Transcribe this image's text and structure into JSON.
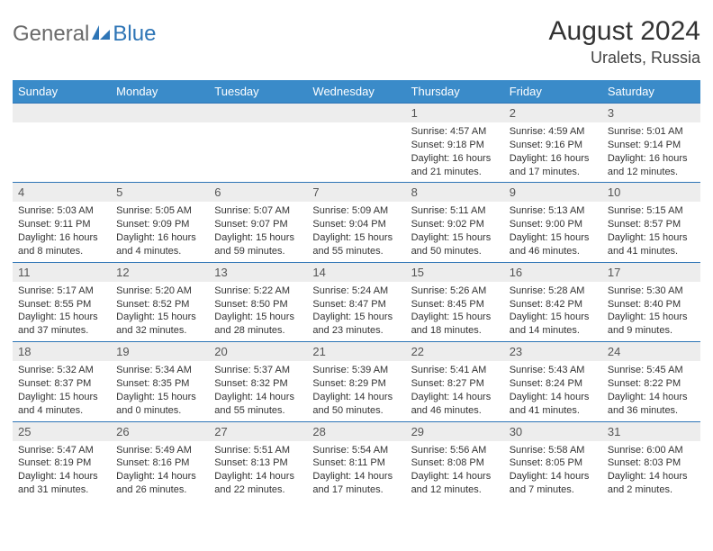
{
  "brand": {
    "name_a": "General",
    "name_b": "Blue"
  },
  "title": "August 2024",
  "location": "Uralets, Russia",
  "colors": {
    "header_bg": "#3a8bc9",
    "border": "#2e75b6",
    "daynum_bg": "#ededed",
    "text": "#333333"
  },
  "day_names": [
    "Sunday",
    "Monday",
    "Tuesday",
    "Wednesday",
    "Thursday",
    "Friday",
    "Saturday"
  ],
  "weeks": [
    [
      {
        "n": "",
        "sr": "",
        "ss": "",
        "dl": ""
      },
      {
        "n": "",
        "sr": "",
        "ss": "",
        "dl": ""
      },
      {
        "n": "",
        "sr": "",
        "ss": "",
        "dl": ""
      },
      {
        "n": "",
        "sr": "",
        "ss": "",
        "dl": ""
      },
      {
        "n": "1",
        "sr": "Sunrise: 4:57 AM",
        "ss": "Sunset: 9:18 PM",
        "dl": "Daylight: 16 hours and 21 minutes."
      },
      {
        "n": "2",
        "sr": "Sunrise: 4:59 AM",
        "ss": "Sunset: 9:16 PM",
        "dl": "Daylight: 16 hours and 17 minutes."
      },
      {
        "n": "3",
        "sr": "Sunrise: 5:01 AM",
        "ss": "Sunset: 9:14 PM",
        "dl": "Daylight: 16 hours and 12 minutes."
      }
    ],
    [
      {
        "n": "4",
        "sr": "Sunrise: 5:03 AM",
        "ss": "Sunset: 9:11 PM",
        "dl": "Daylight: 16 hours and 8 minutes."
      },
      {
        "n": "5",
        "sr": "Sunrise: 5:05 AM",
        "ss": "Sunset: 9:09 PM",
        "dl": "Daylight: 16 hours and 4 minutes."
      },
      {
        "n": "6",
        "sr": "Sunrise: 5:07 AM",
        "ss": "Sunset: 9:07 PM",
        "dl": "Daylight: 15 hours and 59 minutes."
      },
      {
        "n": "7",
        "sr": "Sunrise: 5:09 AM",
        "ss": "Sunset: 9:04 PM",
        "dl": "Daylight: 15 hours and 55 minutes."
      },
      {
        "n": "8",
        "sr": "Sunrise: 5:11 AM",
        "ss": "Sunset: 9:02 PM",
        "dl": "Daylight: 15 hours and 50 minutes."
      },
      {
        "n": "9",
        "sr": "Sunrise: 5:13 AM",
        "ss": "Sunset: 9:00 PM",
        "dl": "Daylight: 15 hours and 46 minutes."
      },
      {
        "n": "10",
        "sr": "Sunrise: 5:15 AM",
        "ss": "Sunset: 8:57 PM",
        "dl": "Daylight: 15 hours and 41 minutes."
      }
    ],
    [
      {
        "n": "11",
        "sr": "Sunrise: 5:17 AM",
        "ss": "Sunset: 8:55 PM",
        "dl": "Daylight: 15 hours and 37 minutes."
      },
      {
        "n": "12",
        "sr": "Sunrise: 5:20 AM",
        "ss": "Sunset: 8:52 PM",
        "dl": "Daylight: 15 hours and 32 minutes."
      },
      {
        "n": "13",
        "sr": "Sunrise: 5:22 AM",
        "ss": "Sunset: 8:50 PM",
        "dl": "Daylight: 15 hours and 28 minutes."
      },
      {
        "n": "14",
        "sr": "Sunrise: 5:24 AM",
        "ss": "Sunset: 8:47 PM",
        "dl": "Daylight: 15 hours and 23 minutes."
      },
      {
        "n": "15",
        "sr": "Sunrise: 5:26 AM",
        "ss": "Sunset: 8:45 PM",
        "dl": "Daylight: 15 hours and 18 minutes."
      },
      {
        "n": "16",
        "sr": "Sunrise: 5:28 AM",
        "ss": "Sunset: 8:42 PM",
        "dl": "Daylight: 15 hours and 14 minutes."
      },
      {
        "n": "17",
        "sr": "Sunrise: 5:30 AM",
        "ss": "Sunset: 8:40 PM",
        "dl": "Daylight: 15 hours and 9 minutes."
      }
    ],
    [
      {
        "n": "18",
        "sr": "Sunrise: 5:32 AM",
        "ss": "Sunset: 8:37 PM",
        "dl": "Daylight: 15 hours and 4 minutes."
      },
      {
        "n": "19",
        "sr": "Sunrise: 5:34 AM",
        "ss": "Sunset: 8:35 PM",
        "dl": "Daylight: 15 hours and 0 minutes."
      },
      {
        "n": "20",
        "sr": "Sunrise: 5:37 AM",
        "ss": "Sunset: 8:32 PM",
        "dl": "Daylight: 14 hours and 55 minutes."
      },
      {
        "n": "21",
        "sr": "Sunrise: 5:39 AM",
        "ss": "Sunset: 8:29 PM",
        "dl": "Daylight: 14 hours and 50 minutes."
      },
      {
        "n": "22",
        "sr": "Sunrise: 5:41 AM",
        "ss": "Sunset: 8:27 PM",
        "dl": "Daylight: 14 hours and 46 minutes."
      },
      {
        "n": "23",
        "sr": "Sunrise: 5:43 AM",
        "ss": "Sunset: 8:24 PM",
        "dl": "Daylight: 14 hours and 41 minutes."
      },
      {
        "n": "24",
        "sr": "Sunrise: 5:45 AM",
        "ss": "Sunset: 8:22 PM",
        "dl": "Daylight: 14 hours and 36 minutes."
      }
    ],
    [
      {
        "n": "25",
        "sr": "Sunrise: 5:47 AM",
        "ss": "Sunset: 8:19 PM",
        "dl": "Daylight: 14 hours and 31 minutes."
      },
      {
        "n": "26",
        "sr": "Sunrise: 5:49 AM",
        "ss": "Sunset: 8:16 PM",
        "dl": "Daylight: 14 hours and 26 minutes."
      },
      {
        "n": "27",
        "sr": "Sunrise: 5:51 AM",
        "ss": "Sunset: 8:13 PM",
        "dl": "Daylight: 14 hours and 22 minutes."
      },
      {
        "n": "28",
        "sr": "Sunrise: 5:54 AM",
        "ss": "Sunset: 8:11 PM",
        "dl": "Daylight: 14 hours and 17 minutes."
      },
      {
        "n": "29",
        "sr": "Sunrise: 5:56 AM",
        "ss": "Sunset: 8:08 PM",
        "dl": "Daylight: 14 hours and 12 minutes."
      },
      {
        "n": "30",
        "sr": "Sunrise: 5:58 AM",
        "ss": "Sunset: 8:05 PM",
        "dl": "Daylight: 14 hours and 7 minutes."
      },
      {
        "n": "31",
        "sr": "Sunrise: 6:00 AM",
        "ss": "Sunset: 8:03 PM",
        "dl": "Daylight: 14 hours and 2 minutes."
      }
    ]
  ]
}
